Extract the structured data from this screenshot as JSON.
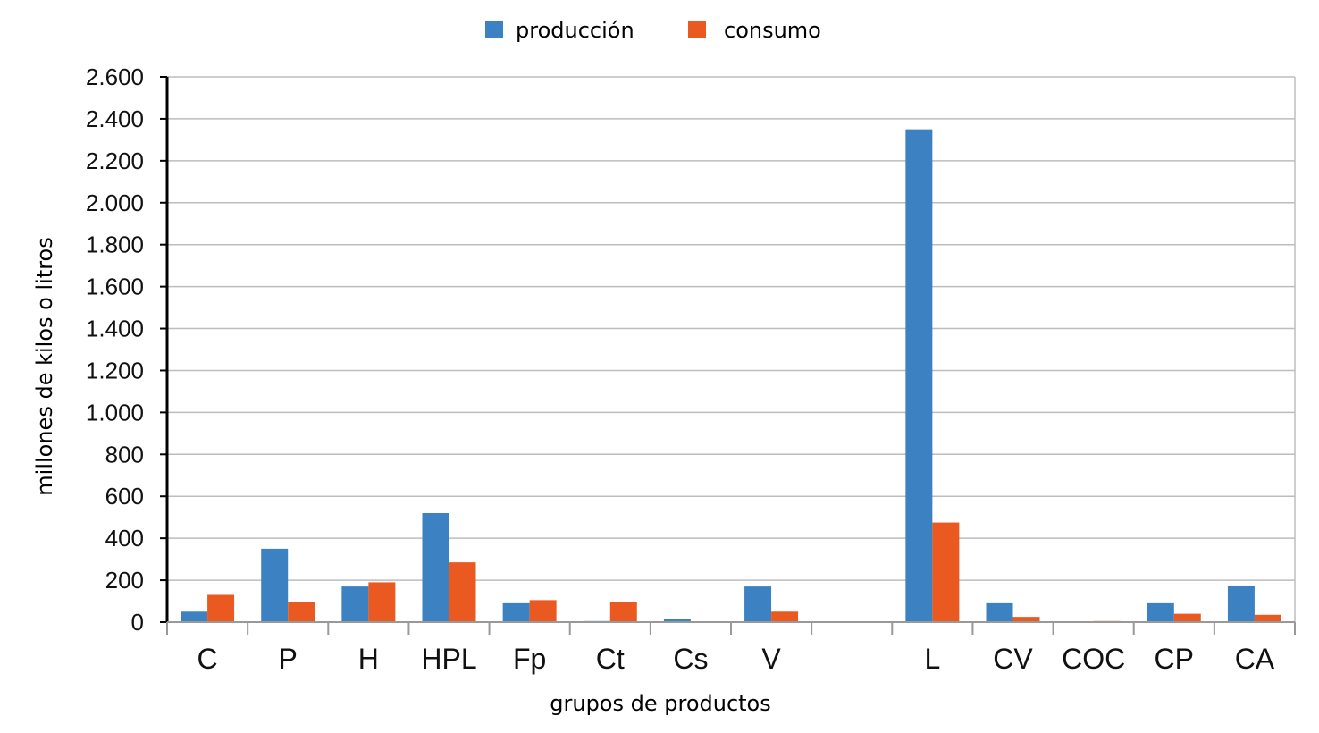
{
  "chart_data": {
    "type": "bar",
    "xlabel": "grupos de productos",
    "ylabel": "millones de kilos o litros",
    "ylim": [
      0,
      2600
    ],
    "yticks": [
      0,
      200,
      400,
      600,
      800,
      1000,
      1200,
      1400,
      1600,
      1800,
      2000,
      2200,
      2400,
      2600
    ],
    "ytick_labels": [
      "0",
      "200",
      "400",
      "600",
      "800",
      "1.000",
      "1.200",
      "1.400",
      "1.600",
      "1.800",
      "2.000",
      "2.200",
      "2.400",
      "2.600"
    ],
    "categories": [
      "C",
      "P",
      "H",
      "HPL",
      "Fp",
      "Ct",
      "Cs",
      "V",
      "",
      "L",
      "CV",
      "COC",
      "CP",
      "CA"
    ],
    "series": [
      {
        "name": "producción",
        "color": "#3c81c2",
        "values": [
          50,
          350,
          170,
          520,
          90,
          5,
          15,
          170,
          0,
          2350,
          90,
          0,
          90,
          175
        ]
      },
      {
        "name": "consumo",
        "color": "#ea5a20",
        "values": [
          130,
          95,
          190,
          285,
          105,
          95,
          3,
          50,
          0,
          475,
          25,
          5,
          40,
          35
        ]
      }
    ],
    "grid": true,
    "legend_position": "top-center"
  }
}
